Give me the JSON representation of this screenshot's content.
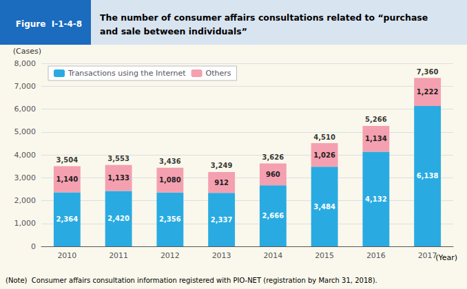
{
  "chart_data": {
    "type": "bar",
    "stacked": true,
    "figure_label": "Figure  I-1-4-8",
    "title": "The number of consumer affairs consultations related to “purchase\nand sale between individuals”",
    "xlabel": "(Year)",
    "ylabel": "(Cases)",
    "annotations": [
      "(Note)  Consumer affairs consultation information registered with PIO-NET (registration by March 31, 2018)."
    ],
    "categories": [
      "2010",
      "2011",
      "2012",
      "2013",
      "2014",
      "2015",
      "2016",
      "2017"
    ],
    "series": [
      {
        "name": "Transactions using the Internet",
        "color": "#29ABE2",
        "values": [
          2364,
          2420,
          2356,
          2337,
          2666,
          3484,
          4132,
          6138
        ],
        "value_labels": [
          "2,364",
          "2,420",
          "2,356",
          "2,337",
          "2,666",
          "3,484",
          "4,132",
          "6,138"
        ]
      },
      {
        "name": "Others",
        "color": "#F4A0B0",
        "values": [
          1140,
          1133,
          1080,
          912,
          960,
          1026,
          1134,
          1222
        ],
        "value_labels": [
          "1,140",
          "1,133",
          "1,080",
          "912",
          "960",
          "1,026",
          "1,134",
          "1,222"
        ]
      }
    ],
    "totals": [
      3504,
      3553,
      3436,
      3249,
      3626,
      4510,
      5266,
      7360
    ],
    "total_labels": [
      "3,504",
      "3,553",
      "3,436",
      "3,249",
      "3,626",
      "4,510",
      "5,266",
      "7,360"
    ],
    "data_labels": true,
    "ylim": [
      0,
      8000
    ],
    "yticks": [
      0,
      {
        "value": 1000,
        "label": "1,000"
      },
      {
        "value": 2000,
        "label": "2,000"
      },
      {
        "value": 3000,
        "label": "3,000"
      },
      {
        "value": 4000,
        "label": "4,000"
      },
      {
        "value": 5000,
        "label": "5,000"
      },
      {
        "value": 6000,
        "label": "6,000"
      },
      {
        "value": 7000,
        "label": "7,000"
      },
      {
        "value": 8000,
        "label": "8,000"
      }
    ],
    "grid": true,
    "legend": "upper left"
  }
}
